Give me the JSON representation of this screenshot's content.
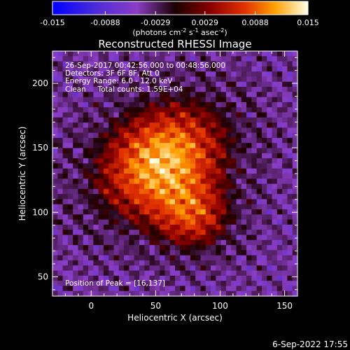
{
  "chart_data": {
    "type": "heatmap",
    "title": "Reconstructed RHESSI Image",
    "xlabel": "Heliocentric X (arcsec)",
    "ylabel": "Heliocentric Y (arcsec)",
    "xlim": [
      -30,
      160
    ],
    "ylim": [
      35,
      225
    ],
    "x_ticks": [
      0,
      50,
      100,
      150
    ],
    "y_ticks": [
      50,
      100,
      150,
      200
    ],
    "colorbar": {
      "range": [
        -0.015,
        0.015
      ],
      "tick_values": [
        -0.015,
        -0.0088,
        -0.0029,
        0.0029,
        0.0088,
        0.015
      ],
      "tick_labels": [
        "-0.015",
        "-0.0088",
        "-0.0029",
        "0.0029",
        "0.0088",
        "0.015"
      ],
      "units_main": "(photons cm",
      "units_exp1": "-2",
      "units_mid1": " s",
      "units_exp2": "-1",
      "units_mid2": " asec",
      "units_exp3": "-2",
      "units_end": ")"
    },
    "info_lines": [
      "26-Sep-2017 00:42:56.000 to 00:48:56.000",
      "Detectors: 3F 6F 8F, Att 0",
      "Energy Range: 6.0 - 12.0 keV",
      "Clean     Total counts: 1.59E+04"
    ],
    "peak_label": "Position of Peak = [16,137]",
    "peak": [
      16,
      137
    ],
    "source_center": [
      55,
      140
    ],
    "grid": false
  },
  "footer": {
    "timestamp": "6-Sep-2022 17:55"
  },
  "colors": {
    "background": "#000000",
    "axes": "#ffffff"
  }
}
